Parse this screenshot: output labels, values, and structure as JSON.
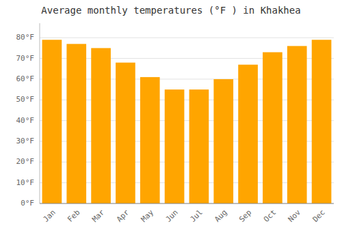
{
  "chart_data": {
    "type": "bar",
    "title": "Average monthly temperatures (°F ) in Khakhea",
    "categories": [
      "Jan",
      "Feb",
      "Mar",
      "Apr",
      "May",
      "Jun",
      "Jul",
      "Aug",
      "Sep",
      "Oct",
      "Nov",
      "Dec"
    ],
    "values": [
      79,
      77,
      75,
      68,
      61,
      55,
      55,
      60,
      67,
      73,
      76,
      79
    ],
    "color": "#FFA500",
    "ylim": [
      0,
      87
    ],
    "yticks": [
      {
        "value": 0,
        "label": "0°F"
      },
      {
        "value": 10,
        "label": "10°F"
      },
      {
        "value": 20,
        "label": "20°F"
      },
      {
        "value": 30,
        "label": "30°F"
      },
      {
        "value": 40,
        "label": "40°F"
      },
      {
        "value": 50,
        "label": "50°F"
      },
      {
        "value": 60,
        "label": "60°F"
      },
      {
        "value": 70,
        "label": "70°F"
      },
      {
        "value": 80,
        "label": "80°F"
      }
    ],
    "grid": true
  }
}
